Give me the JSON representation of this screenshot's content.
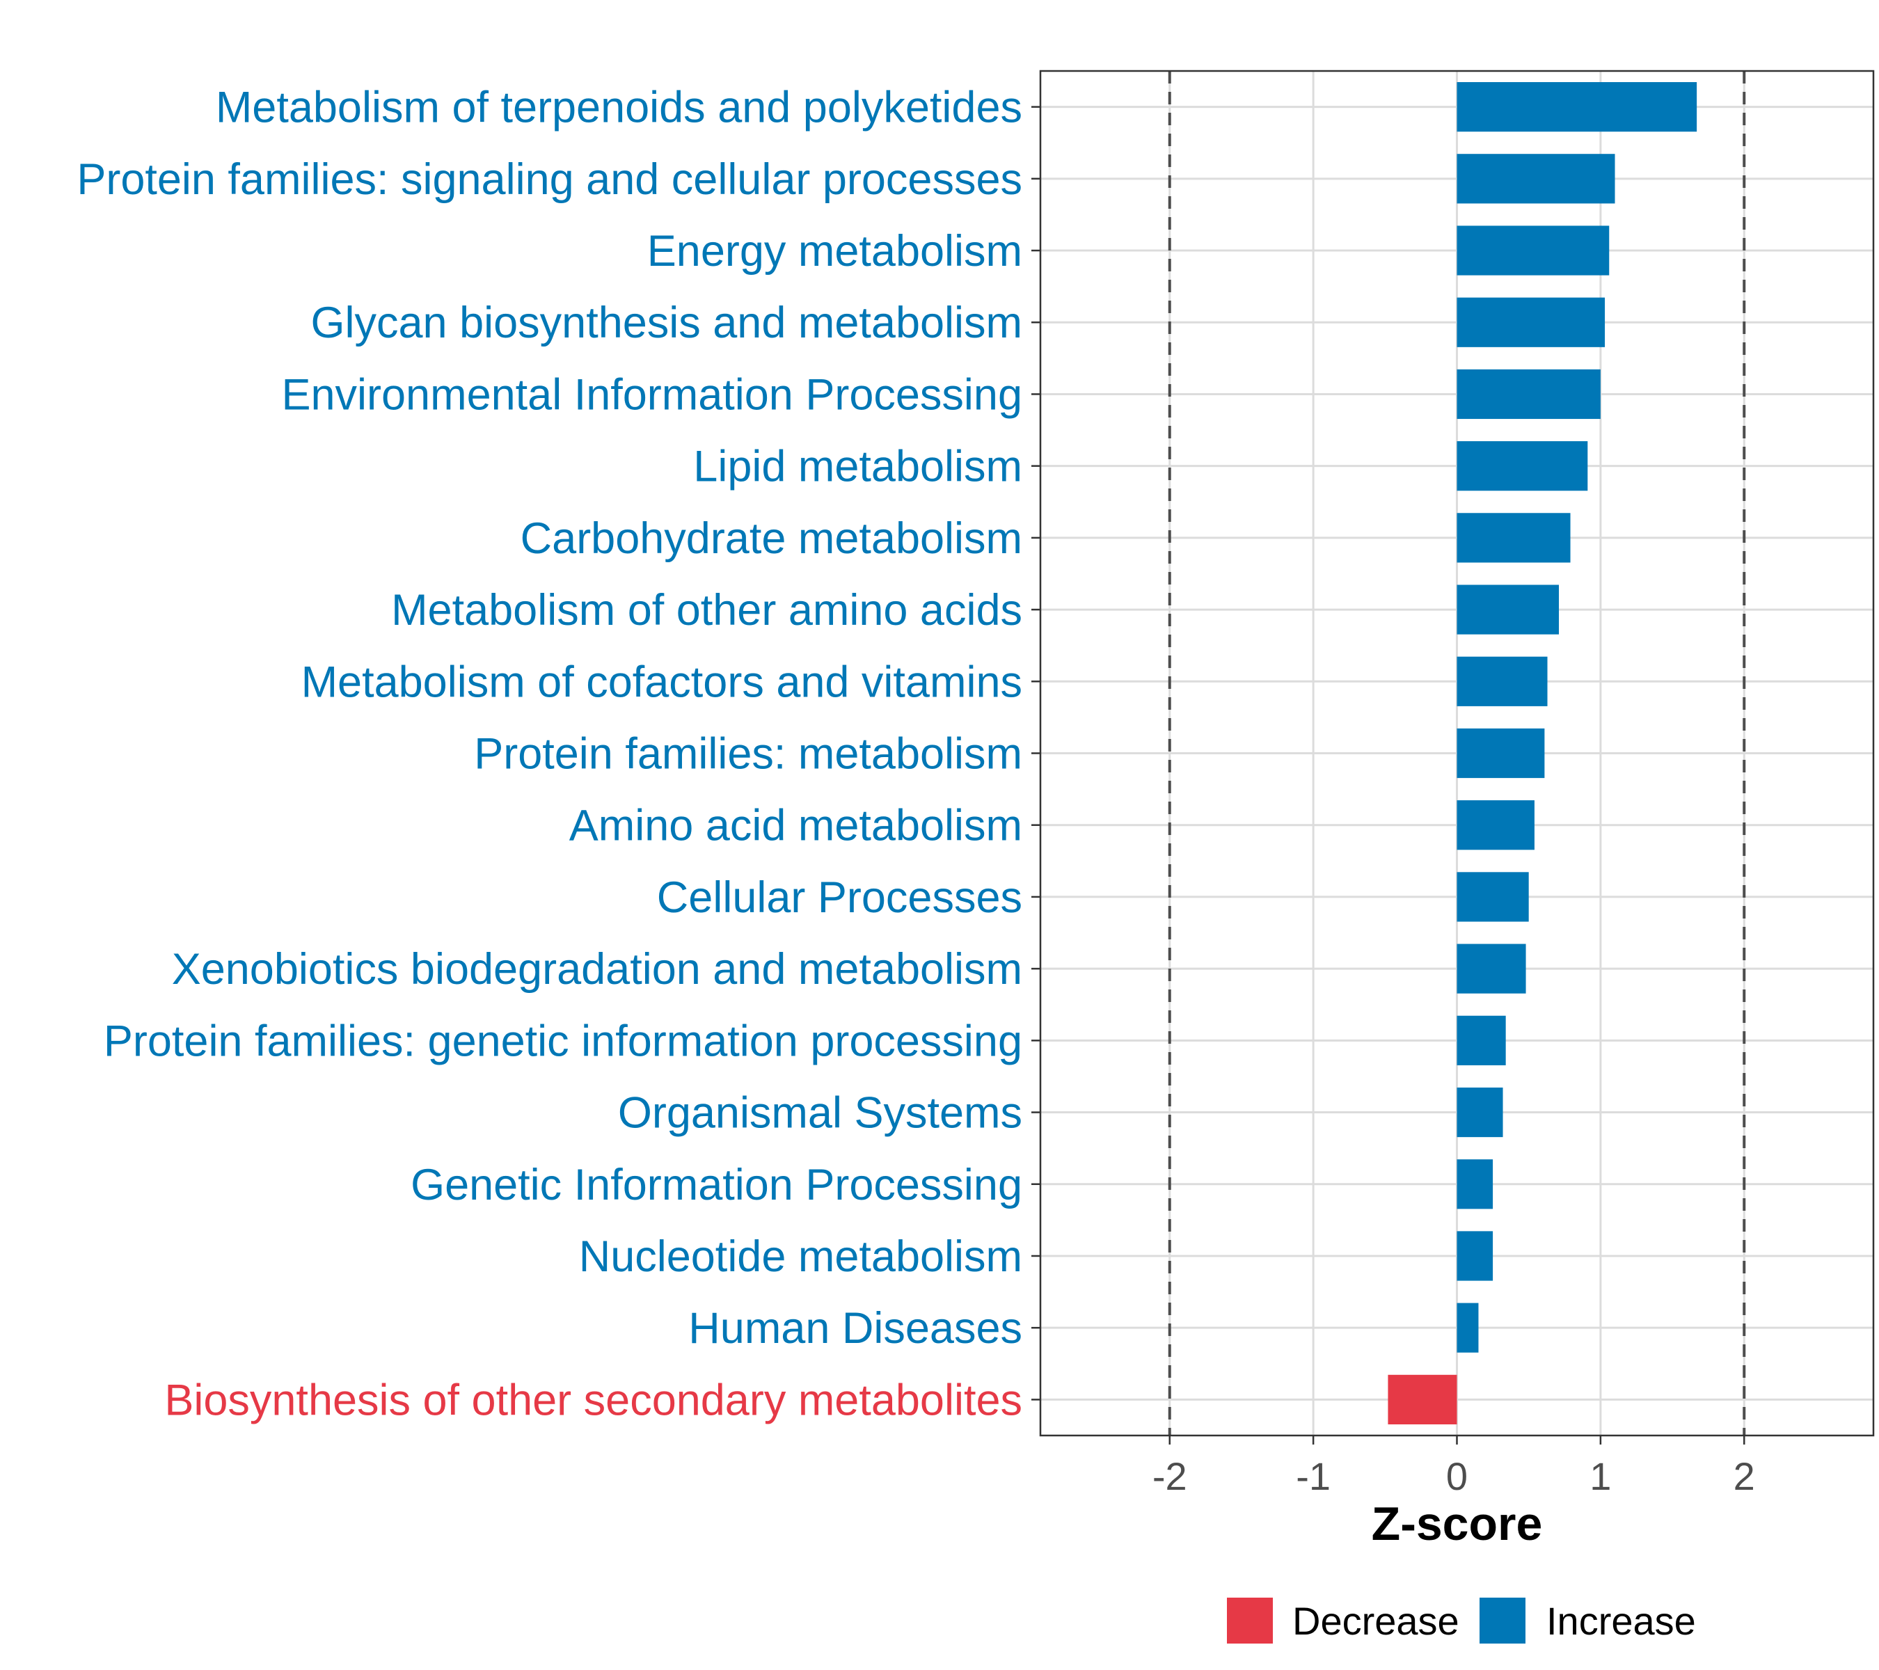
{
  "chart_data": {
    "type": "bar",
    "orientation": "horizontal",
    "title": "",
    "xlabel": "Z-score",
    "ylabel": "",
    "xlim": [
      -2.9,
      2.9
    ],
    "xticks": [
      -2,
      -1,
      0,
      1,
      2
    ],
    "xtick_labels": [
      "-2",
      "-1",
      "0",
      "1",
      "2"
    ],
    "threshold_lines": [
      -2,
      2
    ],
    "grid": true,
    "categories": [
      "Metabolism of terpenoids and polyketides",
      "Protein families: signaling and cellular processes",
      "Energy metabolism",
      "Glycan biosynthesis and metabolism",
      "Environmental Information Processing",
      "Lipid metabolism",
      "Carbohydrate metabolism",
      "Metabolism of other amino acids",
      "Metabolism of cofactors and vitamins",
      "Protein families: metabolism",
      "Amino acid metabolism",
      "Cellular Processes",
      "Xenobiotics biodegradation and metabolism",
      "Protein families: genetic information processing",
      "Organismal Systems",
      "Genetic Information Processing",
      "Nucleotide metabolism",
      "Human Diseases",
      "Biosynthesis of other secondary metabolites"
    ],
    "values": [
      1.67,
      1.1,
      1.06,
      1.03,
      1.0,
      0.91,
      0.79,
      0.71,
      0.63,
      0.61,
      0.54,
      0.5,
      0.48,
      0.34,
      0.32,
      0.25,
      0.25,
      0.15,
      -0.48
    ],
    "groups": [
      "Increase",
      "Increase",
      "Increase",
      "Increase",
      "Increase",
      "Increase",
      "Increase",
      "Increase",
      "Increase",
      "Increase",
      "Increase",
      "Increase",
      "Increase",
      "Increase",
      "Increase",
      "Increase",
      "Increase",
      "Increase",
      "Decrease"
    ],
    "legend": {
      "position": "bottom",
      "entries": [
        {
          "label": "Decrease",
          "color": "#e63946"
        },
        {
          "label": "Increase",
          "color": "#0077b6"
        }
      ]
    },
    "colors": {
      "Increase": "#0077b6",
      "Decrease": "#e63946"
    }
  }
}
